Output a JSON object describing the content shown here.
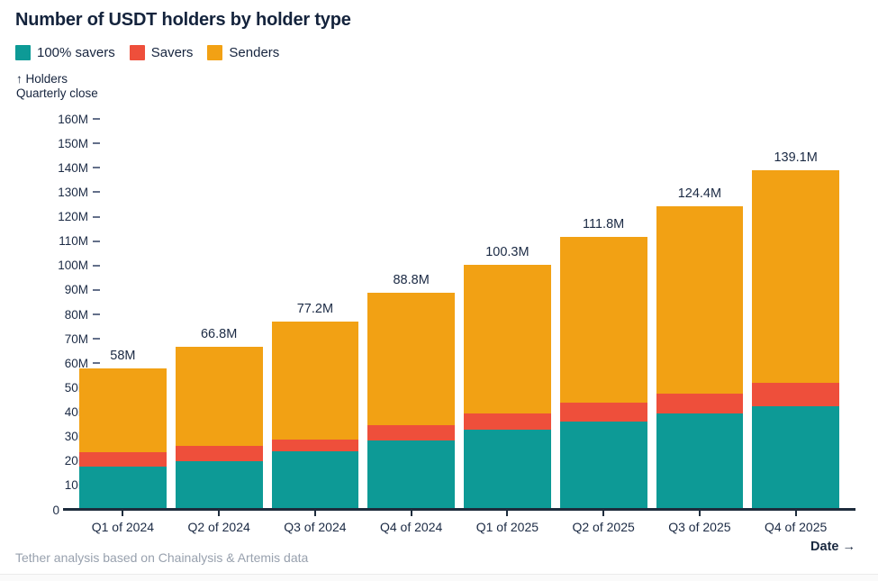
{
  "title": "Number of USDT holders by holder type",
  "y_axis": {
    "note_line1": "↑ Holders",
    "note_line2": "Quarterly close",
    "tick_labels": [
      "0",
      "10M",
      "20M",
      "30M",
      "40M",
      "50M",
      "60M",
      "70M",
      "80M",
      "90M",
      "100M",
      "110M",
      "120M",
      "130M",
      "140M",
      "150M",
      "160M"
    ]
  },
  "x_axis": {
    "label": "Date →"
  },
  "footer": {
    "source_note": "Tether analysis based on Chainalysis & Artemis data"
  },
  "colors": {
    "savers_100": "#0d9a96",
    "savers": "#ee4f3b",
    "senders": "#f2a114",
    "title_text": "#14233c",
    "axis_text": "#1b2a44",
    "axis_line": "#1e2c3c",
    "footer_text": "#98a1ae"
  },
  "chart_data": {
    "type": "bar",
    "stacked": true,
    "title": "Number of USDT holders by holder type",
    "ylabel": "Holders",
    "ylabel_sub": "Quarterly close",
    "xlabel": "Date",
    "unit": "millions of holders",
    "ylim": [
      0,
      160
    ],
    "y_tick_step": 10,
    "grid": false,
    "legend_position": "top",
    "categories": [
      "Q1 of 2024",
      "Q2 of 2024",
      "Q3 of 2024",
      "Q4 of 2024",
      "Q1 of 2025",
      "Q2 of 2025",
      "Q3 of 2025",
      "Q4 of 2025"
    ],
    "series": [
      {
        "name": "100% savers",
        "color": "#0d9a96",
        "values": [
          17.6,
          20.0,
          23.9,
          28.4,
          32.7,
          36.1,
          39.4,
          42.5
        ]
      },
      {
        "name": "Savers",
        "color": "#ee4f3b",
        "values": [
          6.1,
          6.2,
          5.0,
          6.4,
          6.7,
          7.9,
          8.3,
          9.5
        ]
      },
      {
        "name": "Senders",
        "color": "#f2a114",
        "values": [
          34.3,
          40.6,
          48.3,
          54.0,
          60.9,
          67.8,
          76.7,
          87.1
        ]
      }
    ],
    "totals": [
      58,
      66.8,
      77.2,
      88.8,
      100.3,
      111.8,
      124.4,
      139.1
    ],
    "total_labels": [
      "58M",
      "66.8M",
      "77.2M",
      "88.8M",
      "100.3M",
      "111.8M",
      "124.4M",
      "139.1M"
    ]
  }
}
